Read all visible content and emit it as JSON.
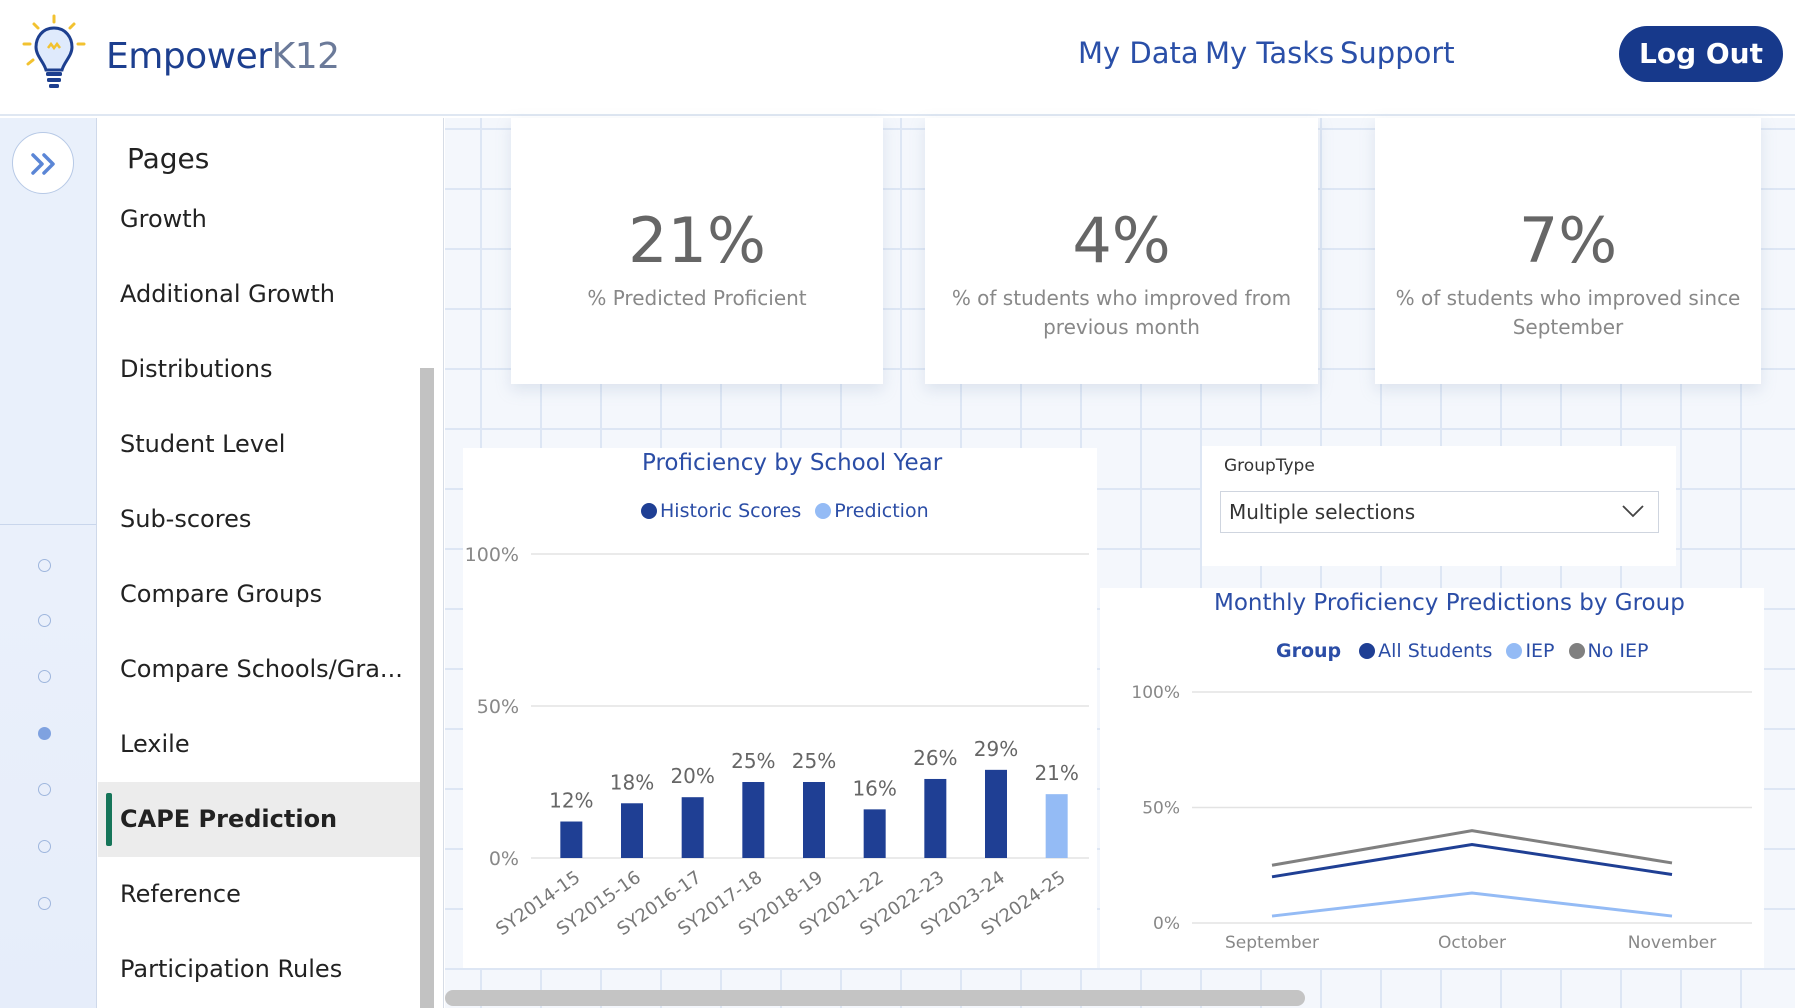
{
  "header": {
    "logo": {
      "brand": "Empower",
      "suffix": "K12"
    },
    "nav": [
      "My Data",
      "My Tasks",
      "Support"
    ],
    "logout_label": "Log Out"
  },
  "sidebar": {
    "title": "Pages",
    "items": [
      {
        "label": "Growth",
        "active": false
      },
      {
        "label": "Additional Growth",
        "active": false
      },
      {
        "label": "Distributions",
        "active": false
      },
      {
        "label": "Student Level",
        "active": false
      },
      {
        "label": "Sub-scores",
        "active": false
      },
      {
        "label": "Compare Groups",
        "active": false
      },
      {
        "label": "Compare Schools/Gra...",
        "active": false
      },
      {
        "label": "Lexile",
        "active": false
      },
      {
        "label": "CAPE Prediction",
        "active": true
      },
      {
        "label": "Reference",
        "active": false
      },
      {
        "label": "Participation Rules",
        "active": false
      }
    ],
    "rail_dots_active_index": 3
  },
  "kpis": [
    {
      "value": "21%",
      "label": "% Predicted Proficient"
    },
    {
      "value": "4%",
      "label": "% of students who improved from previous month"
    },
    {
      "value": "7%",
      "label": "% of students who improved since September"
    }
  ],
  "slicer": {
    "label": "GroupType",
    "value": "Multiple selections"
  },
  "colors": {
    "historic": "#1f3f94",
    "prediction": "#94bbf5",
    "all_students": "#1f3f94",
    "iep": "#94bbf5",
    "no_iep": "#808080",
    "accent": "#17398b"
  },
  "chart_data": [
    {
      "type": "bar",
      "title": "Proficiency by School Year",
      "legend": [
        "Historic Scores",
        "Prediction"
      ],
      "categories": [
        "SY2014-15",
        "SY2015-16",
        "SY2016-17",
        "SY2017-18",
        "SY2018-19",
        "SY2021-22",
        "SY2022-23",
        "SY2023-24",
        "SY2024-25"
      ],
      "values": [
        12,
        18,
        20,
        25,
        25,
        16,
        26,
        29,
        21
      ],
      "labels": [
        "12%",
        "18%",
        "20%",
        "25%",
        "25%",
        "16%",
        "26%",
        "29%",
        "21%"
      ],
      "series_of": [
        "Historic Scores",
        "Historic Scores",
        "Historic Scores",
        "Historic Scores",
        "Historic Scores",
        "Historic Scores",
        "Historic Scores",
        "Historic Scores",
        "Prediction"
      ],
      "yticks": [
        "0%",
        "50%",
        "100%"
      ],
      "ylim": [
        0,
        100
      ]
    },
    {
      "type": "line",
      "title": "Monthly Proficiency Predictions by Group",
      "legend_title": "Group",
      "categories": [
        "September",
        "October",
        "November"
      ],
      "series": [
        {
          "name": "All Students",
          "values": [
            20,
            34,
            21
          ]
        },
        {
          "name": "IEP",
          "values": [
            3,
            13,
            3
          ]
        },
        {
          "name": "No IEP",
          "values": [
            25,
            40,
            26
          ]
        }
      ],
      "yticks": [
        "0%",
        "50%",
        "100%"
      ],
      "ylim": [
        0,
        100
      ]
    }
  ]
}
